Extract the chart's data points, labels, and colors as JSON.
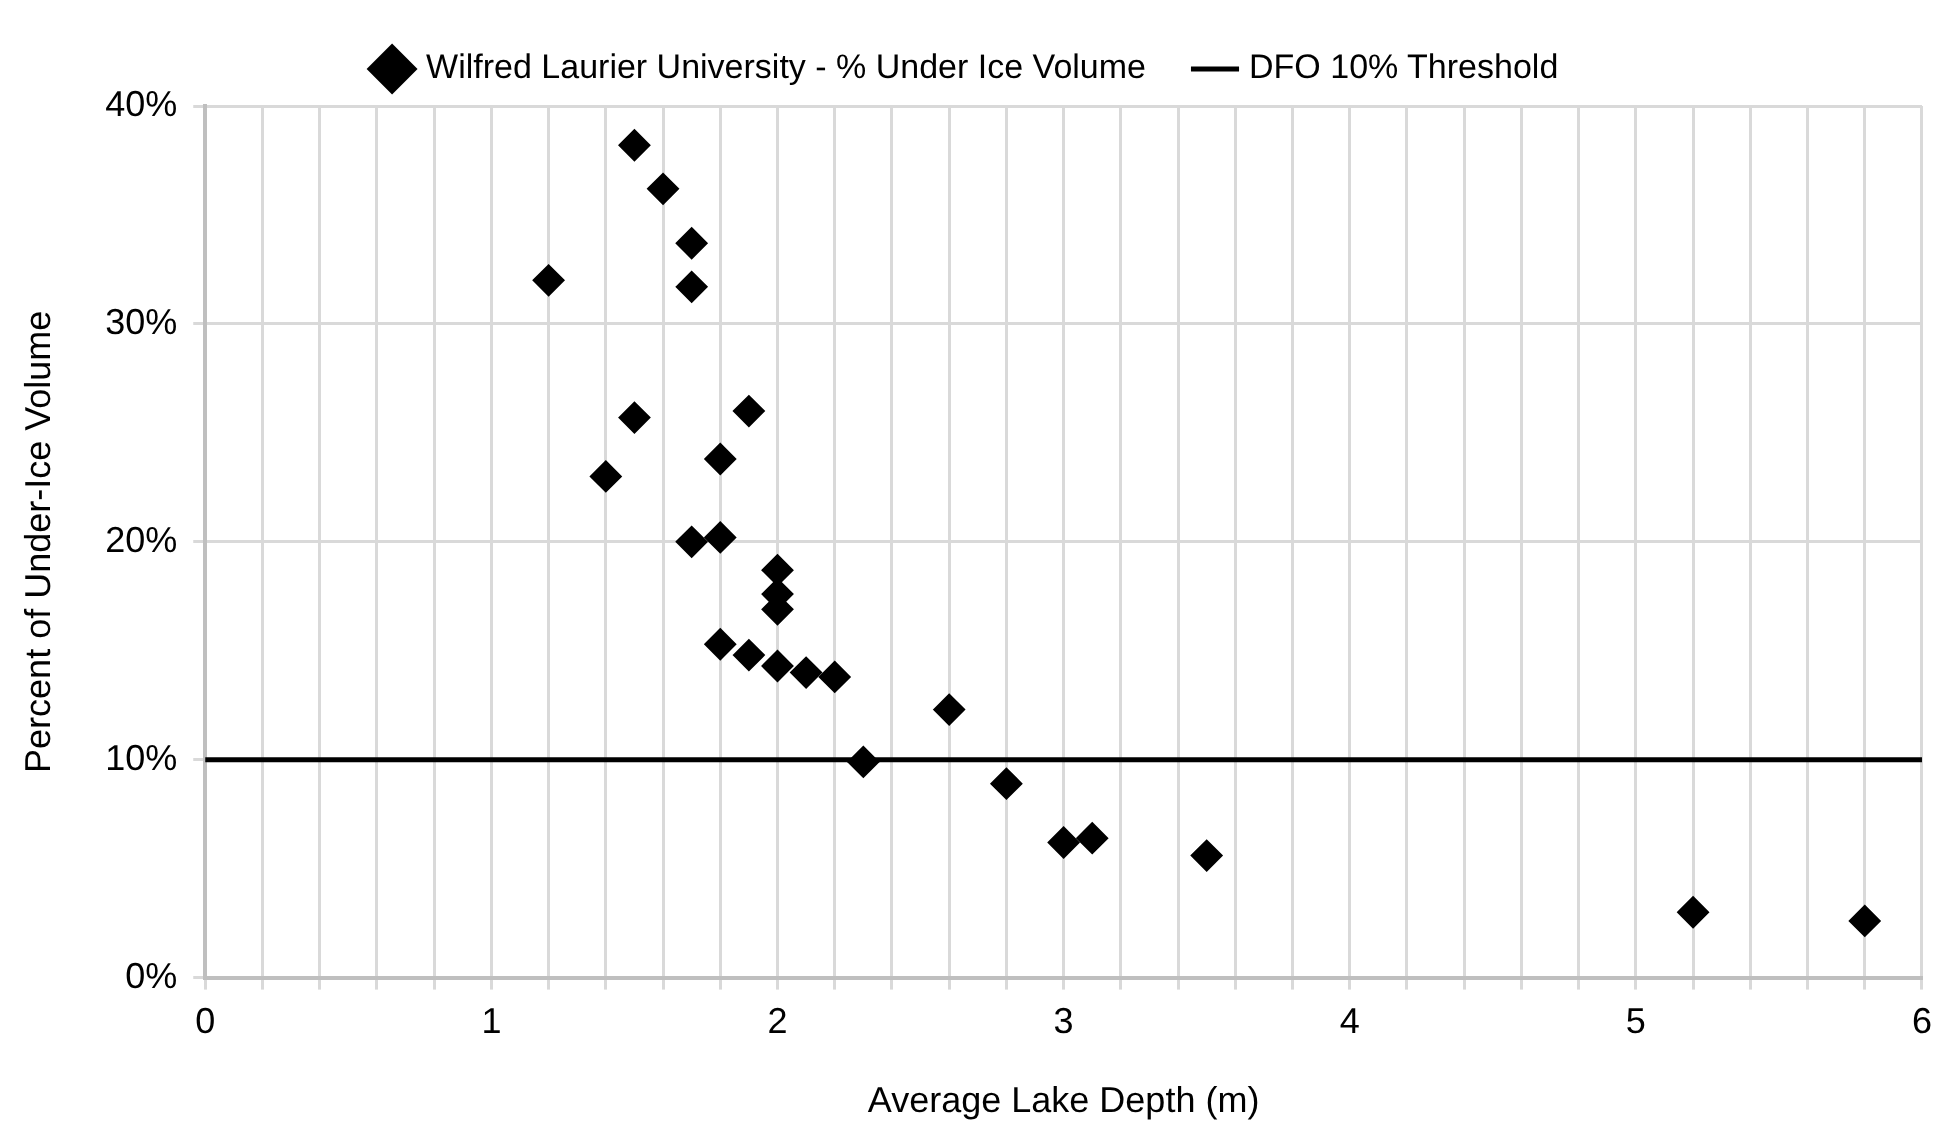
{
  "chart_data": {
    "type": "scatter",
    "xlabel": "Average Lake Depth (m)",
    "ylabel": "Percent of Under-Ice Volume",
    "series": [
      {
        "name": "Wilfred Laurier University - % Under Ice Volume",
        "color": "#000000",
        "x": [
          1.2,
          1.4,
          1.5,
          1.5,
          1.6,
          1.7,
          1.7,
          1.7,
          1.8,
          1.8,
          1.9,
          1.8,
          1.9,
          2.0,
          2.0,
          2.0,
          2.0,
          2.1,
          2.2,
          2.3,
          2.6,
          2.8,
          3.0,
          3.1,
          3.5,
          5.2,
          5.8
        ],
        "values": [
          32,
          23,
          38.2,
          25.7,
          36.2,
          33.7,
          31.7,
          20,
          20.2,
          23.8,
          26,
          15.3,
          14.8,
          18.7,
          17.6,
          16.9,
          14.3,
          14,
          13.8,
          9.9,
          12.3,
          8.9,
          6.2,
          6.4,
          5.6,
          3.0,
          2.6
        ]
      }
    ],
    "marker": "diamond",
    "ref_lines": [
      {
        "axis": "y",
        "value": 10,
        "label": "DFO 10% Threshold",
        "color": "#000000"
      }
    ],
    "xlim": [
      0,
      6
    ],
    "xticks": [
      0,
      {
        "value": 0.2,
        "label": null
      },
      {
        "value": 0.4,
        "label": null
      },
      {
        "value": 0.6,
        "label": null
      },
      {
        "value": 0.8,
        "label": null
      },
      1,
      {
        "value": 1.2,
        "label": null
      },
      {
        "value": 1.4,
        "label": null
      },
      {
        "value": 1.6,
        "label": null
      },
      {
        "value": 1.8,
        "label": null
      },
      2,
      {
        "value": 2.2,
        "label": null
      },
      {
        "value": 2.4,
        "label": null
      },
      {
        "value": 2.6,
        "label": null
      },
      {
        "value": 2.8,
        "label": null
      },
      3,
      {
        "value": 3.2,
        "label": null
      },
      {
        "value": 3.4,
        "label": null
      },
      {
        "value": 3.6,
        "label": null
      },
      {
        "value": 3.8,
        "label": null
      },
      4,
      {
        "value": 4.2,
        "label": null
      },
      {
        "value": 4.4,
        "label": null
      },
      {
        "value": 4.6,
        "label": null
      },
      {
        "value": 4.8,
        "label": null
      },
      5,
      {
        "value": 5.2,
        "label": null
      },
      {
        "value": 5.4,
        "label": null
      },
      {
        "value": 5.6,
        "label": null
      },
      {
        "value": 5.8,
        "label": null
      },
      6
    ],
    "ylim": [
      0,
      40
    ],
    "yticks": [
      {
        "value": 0,
        "label": "0%"
      },
      {
        "value": 10,
        "label": "10%"
      },
      {
        "value": 20,
        "label": "20%"
      },
      {
        "value": 30,
        "label": "30%"
      },
      {
        "value": 40,
        "label": "40%"
      }
    ],
    "grid": true,
    "legend": "top"
  }
}
